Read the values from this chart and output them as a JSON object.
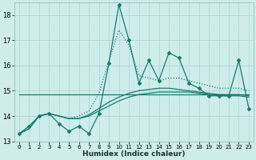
{
  "xlabel": "Humidex (Indice chaleur)",
  "x": [
    0,
    1,
    2,
    3,
    4,
    5,
    6,
    7,
    8,
    9,
    10,
    11,
    12,
    13,
    14,
    15,
    16,
    17,
    18,
    19,
    20,
    21,
    22,
    23
  ],
  "line_jagged": [
    13.3,
    13.6,
    14.0,
    14.1,
    13.7,
    13.4,
    13.6,
    13.3,
    14.1,
    16.1,
    18.4,
    17.0,
    15.3,
    16.2,
    15.4,
    16.5,
    16.3,
    15.3,
    15.1,
    14.8,
    14.8,
    14.8,
    16.2,
    14.3
  ],
  "line_smooth_dotted": [
    13.3,
    13.5,
    14.0,
    14.1,
    14.0,
    13.9,
    14.0,
    14.2,
    14.9,
    16.2,
    17.4,
    16.8,
    15.6,
    15.5,
    15.4,
    15.5,
    15.5,
    15.4,
    15.3,
    15.2,
    15.1,
    15.1,
    15.1,
    15.0
  ],
  "line_flat_high": [
    14.85,
    14.85,
    14.85,
    14.85,
    14.85,
    14.85,
    14.85,
    14.85,
    14.85,
    14.85,
    14.85,
    14.85,
    14.85,
    14.85,
    14.85,
    14.85,
    14.85,
    14.85,
    14.85,
    14.85,
    14.85,
    14.85,
    14.85,
    14.85
  ],
  "line_gradual1": [
    13.3,
    13.5,
    14.0,
    14.1,
    14.0,
    13.9,
    13.9,
    14.0,
    14.2,
    14.4,
    14.6,
    14.75,
    14.85,
    14.9,
    14.95,
    14.95,
    14.95,
    14.95,
    14.9,
    14.85,
    14.8,
    14.8,
    14.8,
    14.75
  ],
  "line_gradual2": [
    13.3,
    13.5,
    14.0,
    14.1,
    14.0,
    13.9,
    13.9,
    14.05,
    14.3,
    14.55,
    14.75,
    14.9,
    15.0,
    15.05,
    15.1,
    15.1,
    15.05,
    15.0,
    14.95,
    14.9,
    14.85,
    14.85,
    14.85,
    14.8
  ],
  "bg_color": "#cdecea",
  "grid_color": "#b0d8d5",
  "line_color": "#1a7a6e",
  "ylim_min": 13.0,
  "ylim_max": 18.5,
  "yticks": [
    13,
    14,
    15,
    16,
    17,
    18
  ],
  "xticks": [
    0,
    1,
    2,
    3,
    4,
    5,
    6,
    7,
    8,
    9,
    10,
    11,
    12,
    13,
    14,
    15,
    16,
    17,
    18,
    19,
    20,
    21,
    22,
    23
  ]
}
